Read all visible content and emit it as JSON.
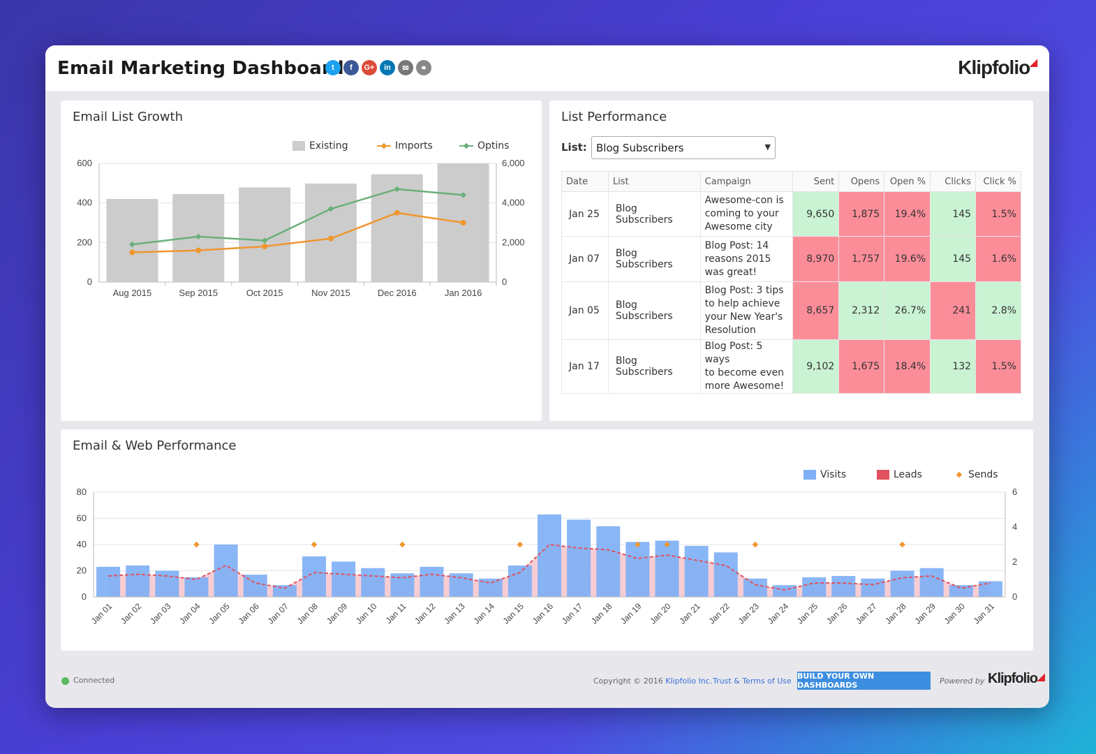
{
  "header": {
    "title": "Email Marketing Dashboard",
    "social": [
      {
        "name": "twitter",
        "glyph": "t",
        "color": "#1da1f2"
      },
      {
        "name": "facebook",
        "glyph": "f",
        "color": "#3b5998"
      },
      {
        "name": "google-plus",
        "glyph": "G+",
        "color": "#dd4b39"
      },
      {
        "name": "linkedin",
        "glyph": "in",
        "color": "#0077b5"
      },
      {
        "name": "email",
        "glyph": "✉",
        "color": "#777777"
      },
      {
        "name": "link",
        "glyph": "⚭",
        "color": "#888888"
      }
    ],
    "logo": "Klipfolio"
  },
  "growth": {
    "title": "Email List Growth",
    "legend": {
      "existing": "Existing",
      "imports": "Imports",
      "optins": "Optins"
    }
  },
  "performance": {
    "title": "List Performance",
    "list_label": "List:",
    "list_value": "Blog Subscribers",
    "columns": [
      "Date",
      "List",
      "Campaign",
      "Sent",
      "Opens",
      "Open %",
      "Clicks",
      "Click %"
    ],
    "rows": [
      {
        "date": "Jan 25",
        "list": "Blog Subscribers",
        "campaign": [
          "Awesome-con is",
          "coming to your",
          "Awesome city"
        ],
        "sent": "9,650",
        "opens": "1,875",
        "open_pct": "19.4%",
        "clicks": "145",
        "click_pct": "1.5%",
        "colors": [
          "green",
          "red",
          "red",
          "green",
          "red"
        ]
      },
      {
        "date": "Jan 07",
        "list": "Blog Subscribers",
        "campaign": [
          "Blog Post: 14",
          "reasons 2015",
          "was great!"
        ],
        "sent": "8,970",
        "opens": "1,757",
        "open_pct": "19.6%",
        "clicks": "145",
        "click_pct": "1.6%",
        "colors": [
          "red",
          "red",
          "red",
          "green",
          "red"
        ]
      },
      {
        "date": "Jan 05",
        "list": "Blog Subscribers",
        "campaign": [
          "Blog Post: 3 tips",
          "to help achieve",
          "your New Year's",
          "Resolution"
        ],
        "sent": "8,657",
        "opens": "2,312",
        "open_pct": "26.7%",
        "clicks": "241",
        "click_pct": "2.8%",
        "colors": [
          "red",
          "green",
          "green",
          "red",
          "green"
        ]
      },
      {
        "date": "Jan 17",
        "list": "Blog Subscribers",
        "campaign": [
          "Blog Post: 5 ways",
          "to become even",
          "more Awesome!"
        ],
        "sent": "9,102",
        "opens": "1,675",
        "open_pct": "18.4%",
        "clicks": "132",
        "click_pct": "1.5%",
        "colors": [
          "green",
          "red",
          "red",
          "green",
          "red"
        ]
      }
    ]
  },
  "web": {
    "title": "Email & Web Performance",
    "legend": {
      "visits": "Visits",
      "leads": "Leads",
      "sends": "Sends"
    }
  },
  "footer": {
    "status": "Connected",
    "copyright": "Copyright © 2016 ",
    "company": "Klipfolio Inc.",
    "terms": "Trust & Terms of Use",
    "build": "BUILD YOUR OWN DASHBOARDS",
    "powered": "Powered by",
    "logo": "Klipfolio"
  },
  "chart_data": [
    {
      "type": "bar",
      "title": "Email List Growth",
      "categories": [
        "Aug 2015",
        "Sep 2015",
        "Oct 2015",
        "Nov 2015",
        "Dec 2016",
        "Jan 2016"
      ],
      "ylim_left": [
        0,
        600
      ],
      "yticks_left": [
        "0",
        "200",
        "400",
        "600"
      ],
      "ylim_right": [
        0,
        6000
      ],
      "yticks_right": [
        "0",
        "2,000",
        "4,000",
        "6,000"
      ],
      "legend_position": "top-right",
      "series": [
        {
          "name": "Existing",
          "kind": "bar",
          "axis": "left",
          "color": "#cccccc",
          "values": [
            420,
            445,
            478,
            498,
            545,
            600
          ]
        },
        {
          "name": "Imports",
          "kind": "line",
          "axis": "right",
          "color": "#f0962f",
          "values": [
            1500,
            1600,
            1800,
            2200,
            3500,
            3000
          ]
        },
        {
          "name": "Optins",
          "kind": "line",
          "axis": "right",
          "color": "#6aaf7a",
          "values": [
            1900,
            2300,
            2100,
            3700,
            4700,
            4400
          ]
        }
      ]
    },
    {
      "type": "bar",
      "title": "Email & Web Performance",
      "categories": [
        "Jan 01",
        "Jan 02",
        "Jan 03",
        "Jan 04",
        "Jan 05",
        "Jan 06",
        "Jan 07",
        "Jan 08",
        "Jan 09",
        "Jan 10",
        "Jan 11",
        "Jan 12",
        "Jan 13",
        "Jan 14",
        "Jan 15",
        "Jan 16",
        "Jan 17",
        "Jan 18",
        "Jan 19",
        "Jan 20",
        "Jan 21",
        "Jan 22",
        "Jan 23",
        "Jan 24",
        "Jan 25",
        "Jan 26",
        "Jan 27",
        "Jan 28",
        "Jan 29",
        "Jan 30",
        "Jan 31"
      ],
      "ylim_left": [
        0,
        80
      ],
      "yticks_left": [
        "0",
        "20",
        "40",
        "60",
        "80"
      ],
      "ylim_right": [
        0,
        6
      ],
      "yticks_right": [
        "0",
        "2",
        "4",
        "6"
      ],
      "legend_position": "top-right",
      "series": [
        {
          "name": "Visits",
          "kind": "bar",
          "axis": "left",
          "color": "#7fb0f5",
          "values": [
            23,
            24,
            20,
            15,
            40,
            17,
            9,
            31,
            27,
            22,
            18,
            23,
            18,
            14,
            24,
            63,
            59,
            54,
            42,
            43,
            39,
            34,
            14,
            9,
            15,
            16,
            14,
            20,
            22,
            9,
            12
          ]
        },
        {
          "name": "Leads",
          "kind": "area",
          "axis": "right",
          "color": "#e0525e",
          "values": [
            1.2,
            1.3,
            1.2,
            1.0,
            1.8,
            0.8,
            0.5,
            1.4,
            1.3,
            1.2,
            1.1,
            1.3,
            1.1,
            0.8,
            1.4,
            3.0,
            2.8,
            2.7,
            2.2,
            2.4,
            2.1,
            1.8,
            0.7,
            0.4,
            0.8,
            0.8,
            0.7,
            1.1,
            1.2,
            0.5,
            0.8
          ]
        },
        {
          "name": "Sends",
          "kind": "scatter",
          "axis": "right",
          "color": "#f0962f",
          "values": [
            0,
            0,
            0,
            3,
            0,
            0,
            0,
            3,
            0,
            0,
            3,
            0,
            0,
            0,
            3,
            0,
            0,
            0,
            3,
            3,
            0,
            0,
            3,
            0,
            0,
            0,
            0,
            3,
            0,
            0,
            0
          ]
        }
      ]
    }
  ]
}
